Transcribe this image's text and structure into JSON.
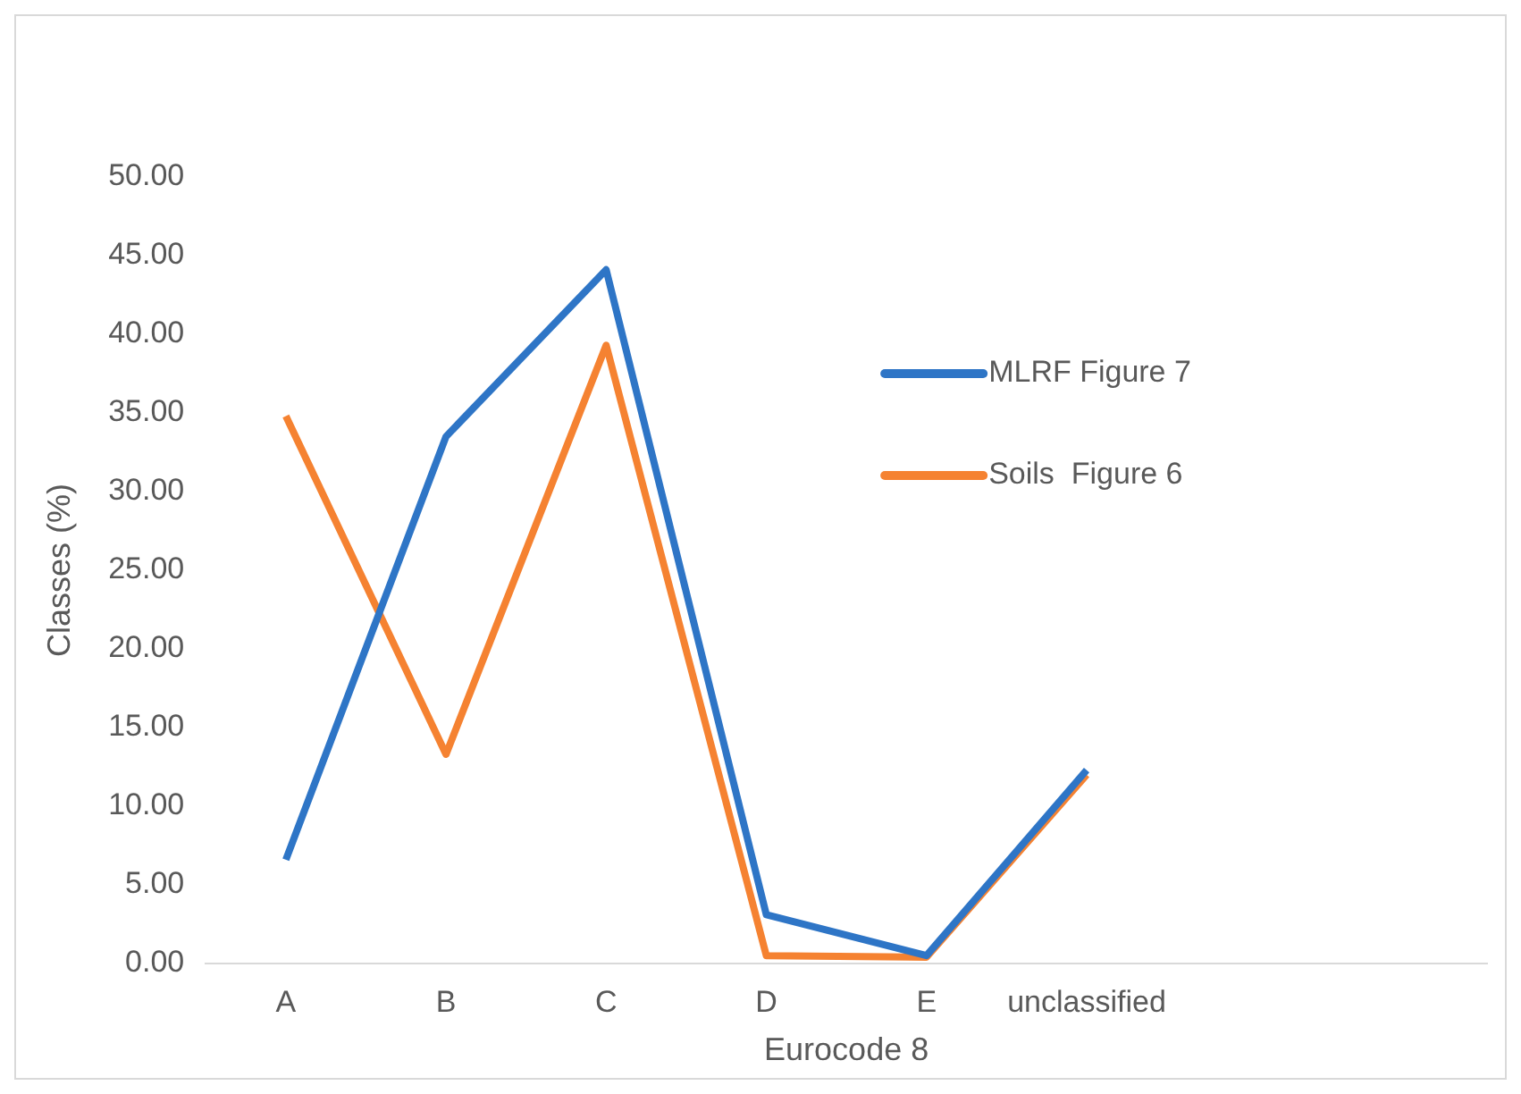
{
  "chart_data": {
    "type": "line",
    "xlabel": "Eurocode 8",
    "ylabel": "Classes (%)",
    "categories": [
      "A",
      "B",
      "C",
      "D",
      "E",
      "unclassified",
      null,
      null
    ],
    "series": [
      {
        "name": "MLRF Figure 7",
        "color": "#2e75c6",
        "values": [
          6.6,
          33.5,
          44.1,
          3.1,
          0.5,
          12.3,
          null,
          null
        ]
      },
      {
        "name": "Soils  Figure 6",
        "color": "#f58231",
        "values": [
          34.8,
          13.3,
          39.3,
          0.5,
          0.4,
          12.0,
          null,
          null
        ]
      }
    ],
    "ylim": [
      0,
      50
    ],
    "yticks": [
      {
        "value": 0,
        "label": "0.00"
      },
      {
        "value": 5,
        "label": "5.00"
      },
      {
        "value": 10,
        "label": "10.00"
      },
      {
        "value": 15,
        "label": "15.00"
      },
      {
        "value": 20,
        "label": "20.00"
      },
      {
        "value": 25,
        "label": "25.00"
      },
      {
        "value": 30,
        "label": "30.00"
      },
      {
        "value": 35,
        "label": "35.00"
      },
      {
        "value": 40,
        "label": "40.00"
      },
      {
        "value": 45,
        "label": "45.00"
      },
      {
        "value": 50,
        "label": "50.00"
      }
    ],
    "grid": false,
    "legend": "right",
    "marker": "none",
    "line_style": "solid"
  }
}
